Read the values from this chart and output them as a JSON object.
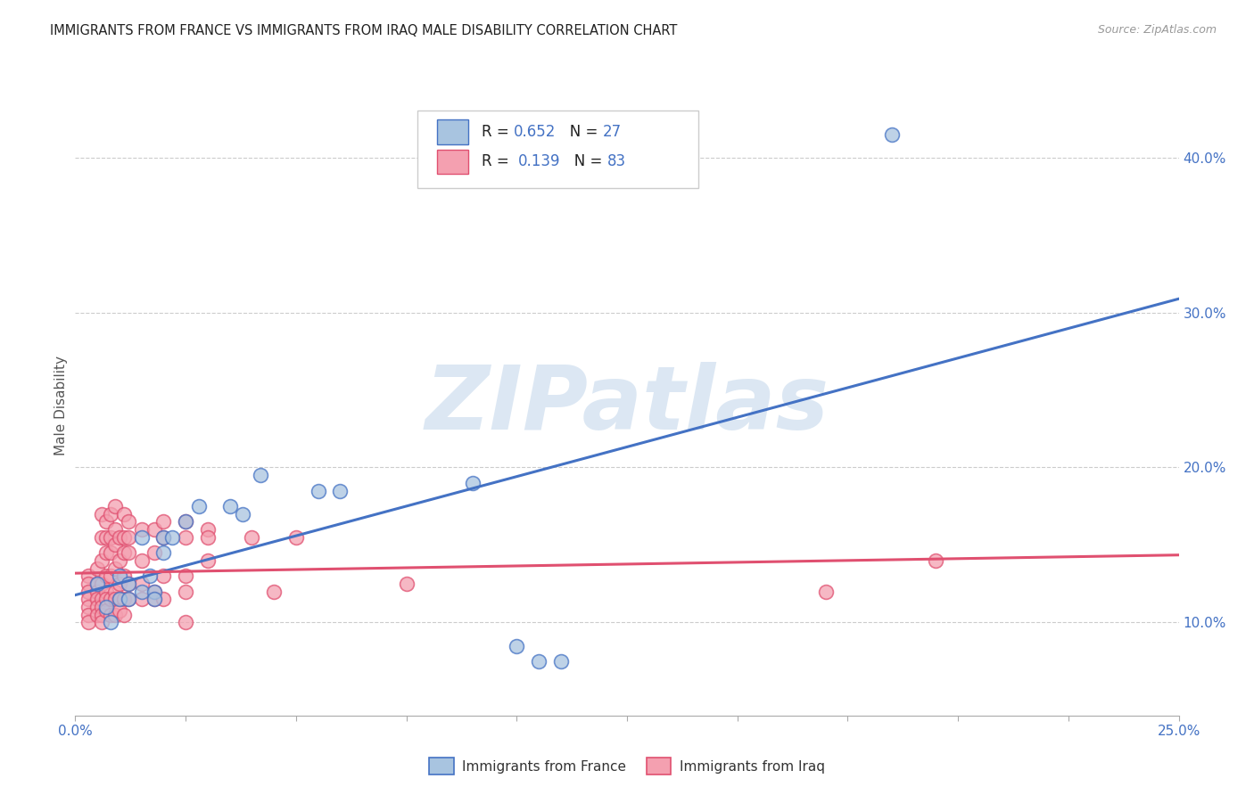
{
  "title": "IMMIGRANTS FROM FRANCE VS IMMIGRANTS FROM IRAQ MALE DISABILITY CORRELATION CHART",
  "source": "Source: ZipAtlas.com",
  "ylabel_label": "Male Disability",
  "xlim": [
    0.0,
    0.25
  ],
  "ylim": [
    0.04,
    0.44
  ],
  "legend_r1": "R = 0.652   N = 27",
  "legend_r2": "R =  0.139   N = 83",
  "france_scatter": [
    [
      0.005,
      0.125
    ],
    [
      0.007,
      0.11
    ],
    [
      0.008,
      0.1
    ],
    [
      0.01,
      0.13
    ],
    [
      0.01,
      0.115
    ],
    [
      0.012,
      0.125
    ],
    [
      0.012,
      0.115
    ],
    [
      0.015,
      0.155
    ],
    [
      0.015,
      0.12
    ],
    [
      0.017,
      0.13
    ],
    [
      0.018,
      0.12
    ],
    [
      0.018,
      0.115
    ],
    [
      0.02,
      0.155
    ],
    [
      0.02,
      0.145
    ],
    [
      0.022,
      0.155
    ],
    [
      0.025,
      0.165
    ],
    [
      0.028,
      0.175
    ],
    [
      0.035,
      0.175
    ],
    [
      0.038,
      0.17
    ],
    [
      0.042,
      0.195
    ],
    [
      0.055,
      0.185
    ],
    [
      0.06,
      0.185
    ],
    [
      0.09,
      0.19
    ],
    [
      0.1,
      0.085
    ],
    [
      0.105,
      0.075
    ],
    [
      0.11,
      0.075
    ],
    [
      0.185,
      0.415
    ]
  ],
  "iraq_scatter": [
    [
      0.003,
      0.13
    ],
    [
      0.003,
      0.125
    ],
    [
      0.003,
      0.12
    ],
    [
      0.003,
      0.115
    ],
    [
      0.003,
      0.11
    ],
    [
      0.003,
      0.105
    ],
    [
      0.003,
      0.1
    ],
    [
      0.005,
      0.135
    ],
    [
      0.005,
      0.125
    ],
    [
      0.005,
      0.12
    ],
    [
      0.005,
      0.115
    ],
    [
      0.005,
      0.11
    ],
    [
      0.005,
      0.105
    ],
    [
      0.006,
      0.17
    ],
    [
      0.006,
      0.155
    ],
    [
      0.006,
      0.14
    ],
    [
      0.006,
      0.125
    ],
    [
      0.006,
      0.115
    ],
    [
      0.006,
      0.11
    ],
    [
      0.006,
      0.105
    ],
    [
      0.006,
      0.1
    ],
    [
      0.007,
      0.165
    ],
    [
      0.007,
      0.155
    ],
    [
      0.007,
      0.145
    ],
    [
      0.007,
      0.13
    ],
    [
      0.007,
      0.12
    ],
    [
      0.007,
      0.115
    ],
    [
      0.007,
      0.108
    ],
    [
      0.008,
      0.17
    ],
    [
      0.008,
      0.155
    ],
    [
      0.008,
      0.145
    ],
    [
      0.008,
      0.13
    ],
    [
      0.008,
      0.115
    ],
    [
      0.008,
      0.105
    ],
    [
      0.009,
      0.175
    ],
    [
      0.009,
      0.16
    ],
    [
      0.009,
      0.15
    ],
    [
      0.009,
      0.135
    ],
    [
      0.009,
      0.12
    ],
    [
      0.009,
      0.115
    ],
    [
      0.009,
      0.105
    ],
    [
      0.01,
      0.155
    ],
    [
      0.01,
      0.14
    ],
    [
      0.01,
      0.125
    ],
    [
      0.01,
      0.115
    ],
    [
      0.01,
      0.108
    ],
    [
      0.011,
      0.17
    ],
    [
      0.011,
      0.155
    ],
    [
      0.011,
      0.145
    ],
    [
      0.011,
      0.13
    ],
    [
      0.011,
      0.115
    ],
    [
      0.011,
      0.105
    ],
    [
      0.012,
      0.165
    ],
    [
      0.012,
      0.155
    ],
    [
      0.012,
      0.145
    ],
    [
      0.012,
      0.125
    ],
    [
      0.012,
      0.115
    ],
    [
      0.015,
      0.16
    ],
    [
      0.015,
      0.14
    ],
    [
      0.015,
      0.125
    ],
    [
      0.015,
      0.115
    ],
    [
      0.018,
      0.16
    ],
    [
      0.018,
      0.145
    ],
    [
      0.018,
      0.12
    ],
    [
      0.018,
      0.115
    ],
    [
      0.02,
      0.165
    ],
    [
      0.02,
      0.155
    ],
    [
      0.02,
      0.13
    ],
    [
      0.02,
      0.115
    ],
    [
      0.025,
      0.165
    ],
    [
      0.025,
      0.155
    ],
    [
      0.025,
      0.13
    ],
    [
      0.025,
      0.12
    ],
    [
      0.025,
      0.1
    ],
    [
      0.03,
      0.16
    ],
    [
      0.03,
      0.155
    ],
    [
      0.03,
      0.14
    ],
    [
      0.04,
      0.155
    ],
    [
      0.045,
      0.12
    ],
    [
      0.05,
      0.155
    ],
    [
      0.075,
      0.125
    ],
    [
      0.17,
      0.12
    ],
    [
      0.195,
      0.14
    ]
  ],
  "france_line_color": "#4472c4",
  "iraq_line_color": "#e05070",
  "france_marker_facecolor": "#a8c4e0",
  "iraq_marker_facecolor": "#f4a0b0",
  "watermark_text": "ZIPatlas",
  "watermark_color": "#c5d8ec",
  "background_color": "#ffffff",
  "grid_color": "#cccccc",
  "title_color": "#222222",
  "source_color": "#999999",
  "tick_label_color": "#4472c4",
  "ylabel_color": "#555555"
}
